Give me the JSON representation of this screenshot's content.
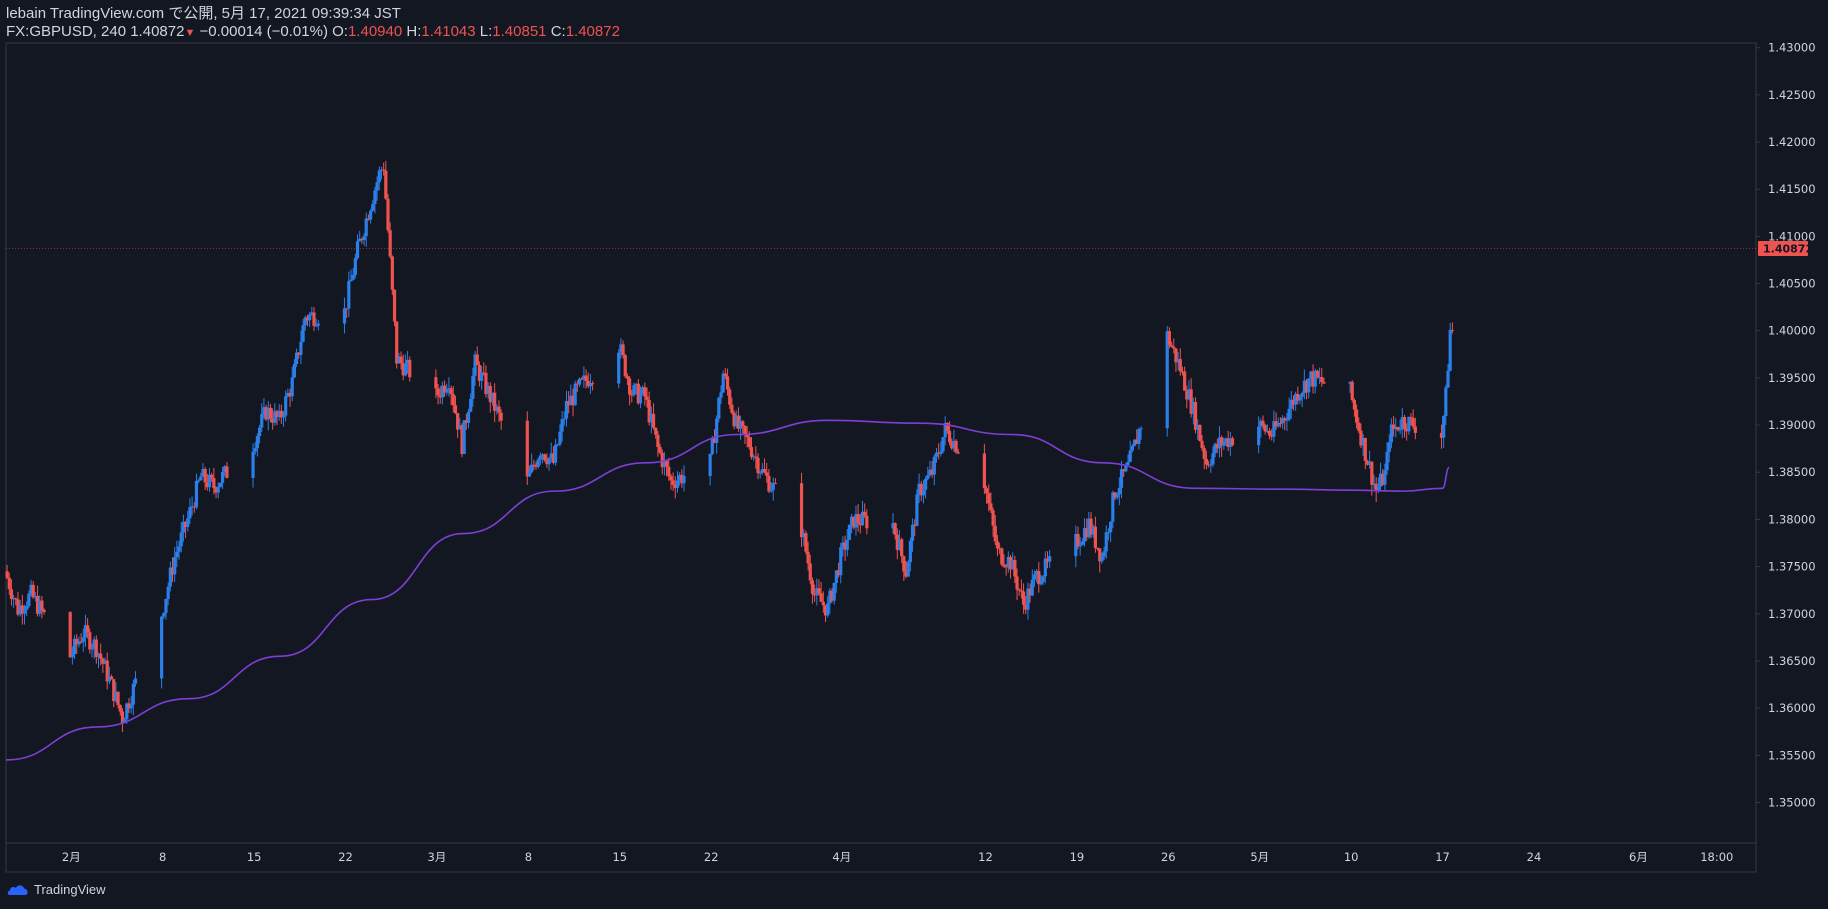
{
  "header": {
    "line1": "lebain TradingView.com で公開, 5月 17, 2021 09:39:34 JST",
    "symbol": "FX:GBPUSD, 240",
    "last": "1.40872",
    "change": "−0.00014 (−0.01%)",
    "o_label": "O:",
    "o_value": "1.40940",
    "h_label": "H:",
    "h_value": "1.41043",
    "l_label": "L:",
    "l_value": "1.40851",
    "c_label": "C:",
    "c_value": "1.40872"
  },
  "footer": {
    "brand": "TradingView",
    "logo_icon": "tradingview-cloud-icon"
  },
  "colors": {
    "background": "#131722",
    "up": "#2a7fe8",
    "down": "#ef5350",
    "ma": "#7e3fd6",
    "axis_text": "#d1d4dc",
    "border": "#363a45"
  },
  "chart_data": {
    "type": "candlestick",
    "instrument": "FX:GBPUSD",
    "timeframe": "240",
    "y_axis": {
      "range": [
        1.3457,
        1.4305
      ],
      "ticks": [
        "1.43000",
        "1.42500",
        "1.42000",
        "1.41500",
        "1.41000",
        "1.40500",
        "1.40000",
        "1.39500",
        "1.39000",
        "1.38500",
        "1.38000",
        "1.37500",
        "1.37000",
        "1.36500",
        "1.36000",
        "1.35500",
        "1.35000"
      ],
      "last_price_label": "1.40872",
      "last_price": 1.40872
    },
    "x_axis": {
      "range": [
        "2021-01-27",
        "2021-06-10"
      ],
      "ticks": [
        {
          "label": "2月",
          "date": "2021-02-01"
        },
        {
          "label": "8",
          "date": "2021-02-08"
        },
        {
          "label": "15",
          "date": "2021-02-15"
        },
        {
          "label": "22",
          "date": "2021-02-22"
        },
        {
          "label": "3月",
          "date": "2021-03-01"
        },
        {
          "label": "8",
          "date": "2021-03-08"
        },
        {
          "label": "15",
          "date": "2021-03-15"
        },
        {
          "label": "22",
          "date": "2021-03-22"
        },
        {
          "label": "4月",
          "date": "2021-04-01"
        },
        {
          "label": "12",
          "date": "2021-04-12"
        },
        {
          "label": "19",
          "date": "2021-04-19"
        },
        {
          "label": "26",
          "date": "2021-04-26"
        },
        {
          "label": "5月",
          "date": "2021-05-03"
        },
        {
          "label": "10",
          "date": "2021-05-10"
        },
        {
          "label": "17",
          "date": "2021-05-17"
        },
        {
          "label": "24",
          "date": "2021-05-24"
        },
        {
          "label": "6月",
          "date": "2021-06-01"
        },
        {
          "label": "18:00",
          "date": "2021-06-07"
        }
      ]
    },
    "price_path": [
      [
        "2021-01-27",
        1.3745
      ],
      [
        "2021-01-28",
        1.3705
      ],
      [
        "2021-01-29",
        1.372
      ],
      [
        "2021-02-01",
        1.3655
      ],
      [
        "2021-02-02",
        1.368
      ],
      [
        "2021-02-03",
        1.3665
      ],
      [
        "2021-02-04",
        1.363
      ],
      [
        "2021-02-05",
        1.359
      ],
      [
        "2021-02-08",
        1.37
      ],
      [
        "2021-02-09",
        1.376
      ],
      [
        "2021-02-10",
        1.38
      ],
      [
        "2021-02-11",
        1.3845
      ],
      [
        "2021-02-12",
        1.3835
      ],
      [
        "2021-02-15",
        1.388
      ],
      [
        "2021-02-16",
        1.3915
      ],
      [
        "2021-02-17",
        1.3905
      ],
      [
        "2021-02-18",
        1.3945
      ],
      [
        "2021-02-19",
        1.4015
      ],
      [
        "2021-02-22",
        1.402
      ],
      [
        "2021-02-23",
        1.4085
      ],
      [
        "2021-02-24",
        1.4135
      ],
      [
        "2021-02-24T18",
        1.417
      ],
      [
        "2021-02-25",
        1.4175
      ],
      [
        "2021-02-26",
        1.397
      ],
      [
        "2021-03-01",
        1.393
      ],
      [
        "2021-03-02",
        1.395
      ],
      [
        "2021-03-03",
        1.388
      ],
      [
        "2021-03-04",
        1.3965
      ],
      [
        "2021-03-05",
        1.3935
      ],
      [
        "2021-03-08",
        1.384
      ],
      [
        "2021-03-09",
        1.3875
      ],
      [
        "2021-03-10",
        1.386
      ],
      [
        "2021-03-11",
        1.392
      ],
      [
        "2021-03-12",
        1.394
      ],
      [
        "2021-03-15",
        1.3985
      ],
      [
        "2021-03-16",
        1.3935
      ],
      [
        "2021-03-17",
        1.393
      ],
      [
        "2021-03-18",
        1.3875
      ],
      [
        "2021-03-19",
        1.384
      ],
      [
        "2021-03-22",
        1.386
      ],
      [
        "2021-03-23",
        1.3955
      ],
      [
        "2021-03-24",
        1.39
      ],
      [
        "2021-03-25",
        1.388
      ],
      [
        "2021-03-26",
        1.385
      ],
      [
        "2021-03-29",
        1.379
      ],
      [
        "2021-03-30",
        1.372
      ],
      [
        "2021-03-31",
        1.3705
      ],
      [
        "2021-04-01",
        1.376
      ],
      [
        "2021-04-02",
        1.38
      ],
      [
        "2021-04-05",
        1.3795
      ],
      [
        "2021-04-06",
        1.3745
      ],
      [
        "2021-04-07",
        1.383
      ],
      [
        "2021-04-08",
        1.385
      ],
      [
        "2021-04-09",
        1.3895
      ],
      [
        "2021-04-12",
        1.384
      ],
      [
        "2021-04-13",
        1.3765
      ],
      [
        "2021-04-14",
        1.3755
      ],
      [
        "2021-04-15",
        1.371
      ],
      [
        "2021-04-16",
        1.374
      ],
      [
        "2021-04-19",
        1.3775
      ],
      [
        "2021-04-20",
        1.3795
      ],
      [
        "2021-04-21",
        1.376
      ],
      [
        "2021-04-22",
        1.383
      ],
      [
        "2021-04-23",
        1.3855
      ],
      [
        "2021-04-26",
        1.3995
      ],
      [
        "2021-04-27",
        1.396
      ],
      [
        "2021-04-28",
        1.3915
      ],
      [
        "2021-04-29",
        1.386
      ],
      [
        "2021-04-30",
        1.388
      ],
      [
        "2021-05-03",
        1.39
      ],
      [
        "2021-05-04",
        1.389
      ],
      [
        "2021-05-05",
        1.391
      ],
      [
        "2021-05-06",
        1.3935
      ],
      [
        "2021-05-07",
        1.395
      ],
      [
        "2021-05-10",
        1.3935
      ],
      [
        "2021-05-11",
        1.388
      ],
      [
        "2021-05-12",
        1.383
      ],
      [
        "2021-05-12T18",
        1.385
      ],
      [
        "2021-05-13",
        1.389
      ],
      [
        "2021-05-14",
        1.3905
      ],
      [
        "2021-05-16",
        1.3895
      ],
      [
        "2021-05-17",
        1.389
      ],
      [
        "2021-05-17T08",
        1.393
      ],
      [
        "2021-05-17T16",
        1.4
      ]
    ],
    "ma_path": [
      [
        "2021-01-27",
        1.3545
      ],
      [
        "2021-02-03",
        1.358
      ],
      [
        "2021-02-10",
        1.361
      ],
      [
        "2021-02-17",
        1.3655
      ],
      [
        "2021-02-24",
        1.3715
      ],
      [
        "2021-03-03",
        1.3785
      ],
      [
        "2021-03-10",
        1.383
      ],
      [
        "2021-03-17",
        1.386
      ],
      [
        "2021-03-24",
        1.389
      ],
      [
        "2021-03-31",
        1.3905
      ],
      [
        "2021-04-07",
        1.3902
      ],
      [
        "2021-04-14",
        1.389
      ],
      [
        "2021-04-21",
        1.386
      ],
      [
        "2021-04-28",
        1.3833
      ],
      [
        "2021-05-05",
        1.3832
      ],
      [
        "2021-05-10",
        1.3831
      ],
      [
        "2021-05-14",
        1.383
      ],
      [
        "2021-05-17",
        1.3833
      ],
      [
        "2021-05-17T12",
        1.3855
      ]
    ],
    "notes_price_levels_seen": [
      1.358,
      1.4165,
      1.393,
      1.4065
    ]
  }
}
